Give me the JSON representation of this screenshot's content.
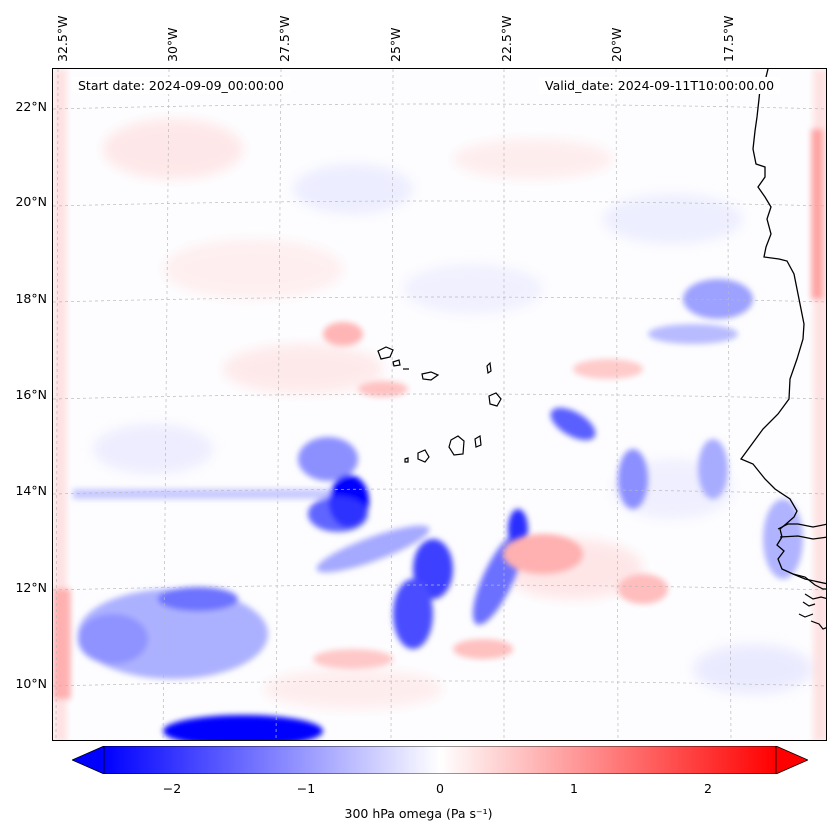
{
  "map": {
    "start_date": "Start date: 2024-09-09_00:00:00",
    "valid_date": "Valid_date: 2024-09-11T10:00:00.00",
    "lon_labels": [
      "32.5°W",
      "30°W",
      "27.5°W",
      "25°W",
      "22.5°W",
      "20°W",
      "17.5°W"
    ],
    "lat_labels": [
      "22°N",
      "20°N",
      "18°N",
      "16°N",
      "14°N",
      "12°N",
      "10°N"
    ],
    "extent": {
      "lon_min": -32.9,
      "lon_max": -15.6,
      "lat_min": 8.9,
      "lat_max": 22.8
    },
    "field": "300 hPa omega",
    "colormap": "bwr",
    "colors": {
      "negative": "#0000ff",
      "zero": "#ffffff",
      "positive": "#ff0000",
      "coastline": "#000000"
    }
  },
  "colorbar": {
    "label": "300 hPa omega (Pa s⁻¹)",
    "ticks": [
      "−2",
      "−1",
      "0",
      "1",
      "2"
    ],
    "tick_values": [
      -2,
      -1,
      0,
      1,
      2
    ],
    "range": [
      -2.5,
      2.5
    ],
    "extend": "both"
  }
}
